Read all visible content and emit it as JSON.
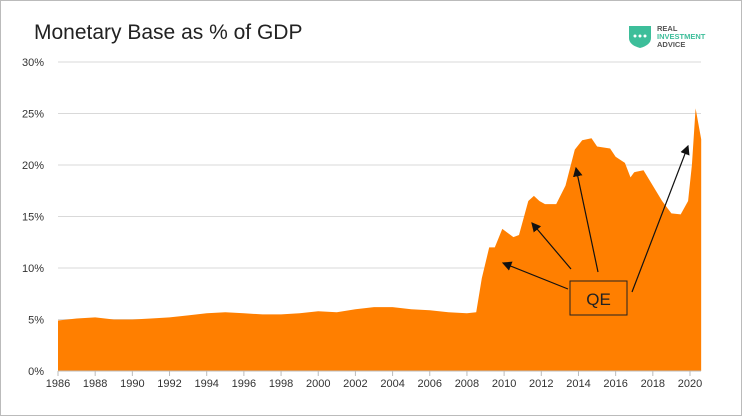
{
  "chart_data": {
    "type": "area",
    "title": "Monetary Base as % of GDP",
    "xlabel": "",
    "ylabel": "",
    "xlim": [
      1986,
      2020.6
    ],
    "ylim": [
      0,
      30
    ],
    "grid": "horizontal",
    "color": "#FF7F00",
    "x_ticks": [
      "1986",
      "1988",
      "1990",
      "1992",
      "1994",
      "1996",
      "1998",
      "2000",
      "2002",
      "2004",
      "2006",
      "2008",
      "2010",
      "2012",
      "2014",
      "2016",
      "2018",
      "2020"
    ],
    "y_ticks": [
      "0%",
      "5%",
      "10%",
      "15%",
      "20%",
      "25%",
      "30%"
    ],
    "x": [
      1986,
      1987,
      1988,
      1989,
      1990,
      1991,
      1992,
      1993,
      1994,
      1995,
      1996,
      1997,
      1998,
      1999,
      2000,
      2001,
      2002,
      2003,
      2004,
      2005,
      2006,
      2007,
      2008,
      2008.5,
      2008.8,
      2009.2,
      2009.5,
      2009.9,
      2010.5,
      2010.8,
      2011.3,
      2011.6,
      2011.9,
      2012.2,
      2012.8,
      2013.3,
      2013.8,
      2014.2,
      2014.7,
      2015,
      2015.7,
      2016,
      2016.5,
      2016.8,
      2017,
      2017.5,
      2018,
      2018.5,
      2019,
      2019.5,
      2019.9,
      2020.1,
      2020.3,
      2020.6
    ],
    "values": [
      4.9,
      5.1,
      5.2,
      5.0,
      5.0,
      5.1,
      5.2,
      5.4,
      5.6,
      5.7,
      5.6,
      5.5,
      5.5,
      5.6,
      5.8,
      5.7,
      6.0,
      6.2,
      6.2,
      6.0,
      5.9,
      5.7,
      5.6,
      5.7,
      9.0,
      12.0,
      12.0,
      13.8,
      13.0,
      13.2,
      16.5,
      17.0,
      16.5,
      16.2,
      16.2,
      18.0,
      21.5,
      22.4,
      22.6,
      21.8,
      21.6,
      20.8,
      20.2,
      18.8,
      19.3,
      19.5,
      18.0,
      16.5,
      15.3,
      15.2,
      16.5,
      20.0,
      25.5,
      22.5
    ],
    "annotation": {
      "label": "QE"
    }
  },
  "logo": {
    "line1": "REAL",
    "line2": "INVESTMENT",
    "line3": "ADVICE",
    "color": "#3DBE9A"
  }
}
